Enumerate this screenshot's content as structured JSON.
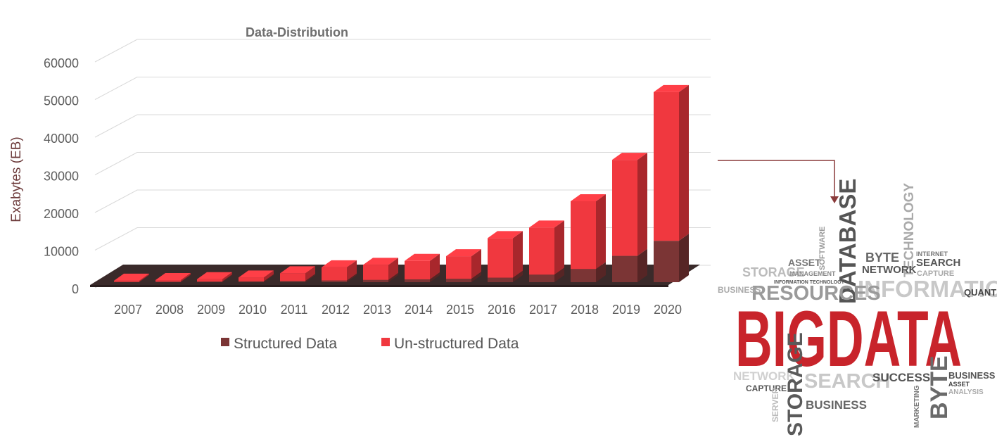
{
  "chart_data": {
    "type": "bar",
    "stacked": true,
    "three_d": true,
    "title": "Data-Distribution",
    "xlabel": "",
    "ylabel": "Exabytes (EB)",
    "ylim": [
      0,
      60000
    ],
    "yticks": [
      0,
      10000,
      20000,
      30000,
      40000,
      50000,
      60000
    ],
    "grid": true,
    "legend_position": "bottom",
    "categories": [
      "2007",
      "2008",
      "2009",
      "2010",
      "2011",
      "2012",
      "2013",
      "2014",
      "2015",
      "2016",
      "2017",
      "2018",
      "2019",
      "2020"
    ],
    "series": [
      {
        "name": "Structured Data",
        "color": "#7b3535",
        "values": [
          100,
          150,
          200,
          250,
          350,
          450,
          600,
          750,
          900,
          1200,
          2000,
          3500,
          7000,
          11000
        ]
      },
      {
        "name": "Un-structured Data",
        "color": "#f0383f",
        "values": [
          300,
          400,
          600,
          1000,
          2000,
          3500,
          4000,
          4900,
          6000,
          10500,
          12500,
          18000,
          25500,
          39500
        ]
      }
    ]
  },
  "wordcloud": {
    "accent": "#c8242b",
    "main": "BIGDATA",
    "words": [
      "DATABASE",
      "TECHNOLOGY",
      "INFORMATION",
      "RESOURCES",
      "STORAGE",
      "ASSET",
      "NETWORK",
      "SEARCH",
      "BYTE",
      "QUANTITY",
      "BUSINESS",
      "SUCCESS",
      "CAPTURE",
      "MANAGEMENT",
      "SOFTWARE",
      "INTERNET",
      "SERVER",
      "ANALYSIS",
      "MARKETING",
      "INFORMATION TECHNOLOGY"
    ]
  }
}
